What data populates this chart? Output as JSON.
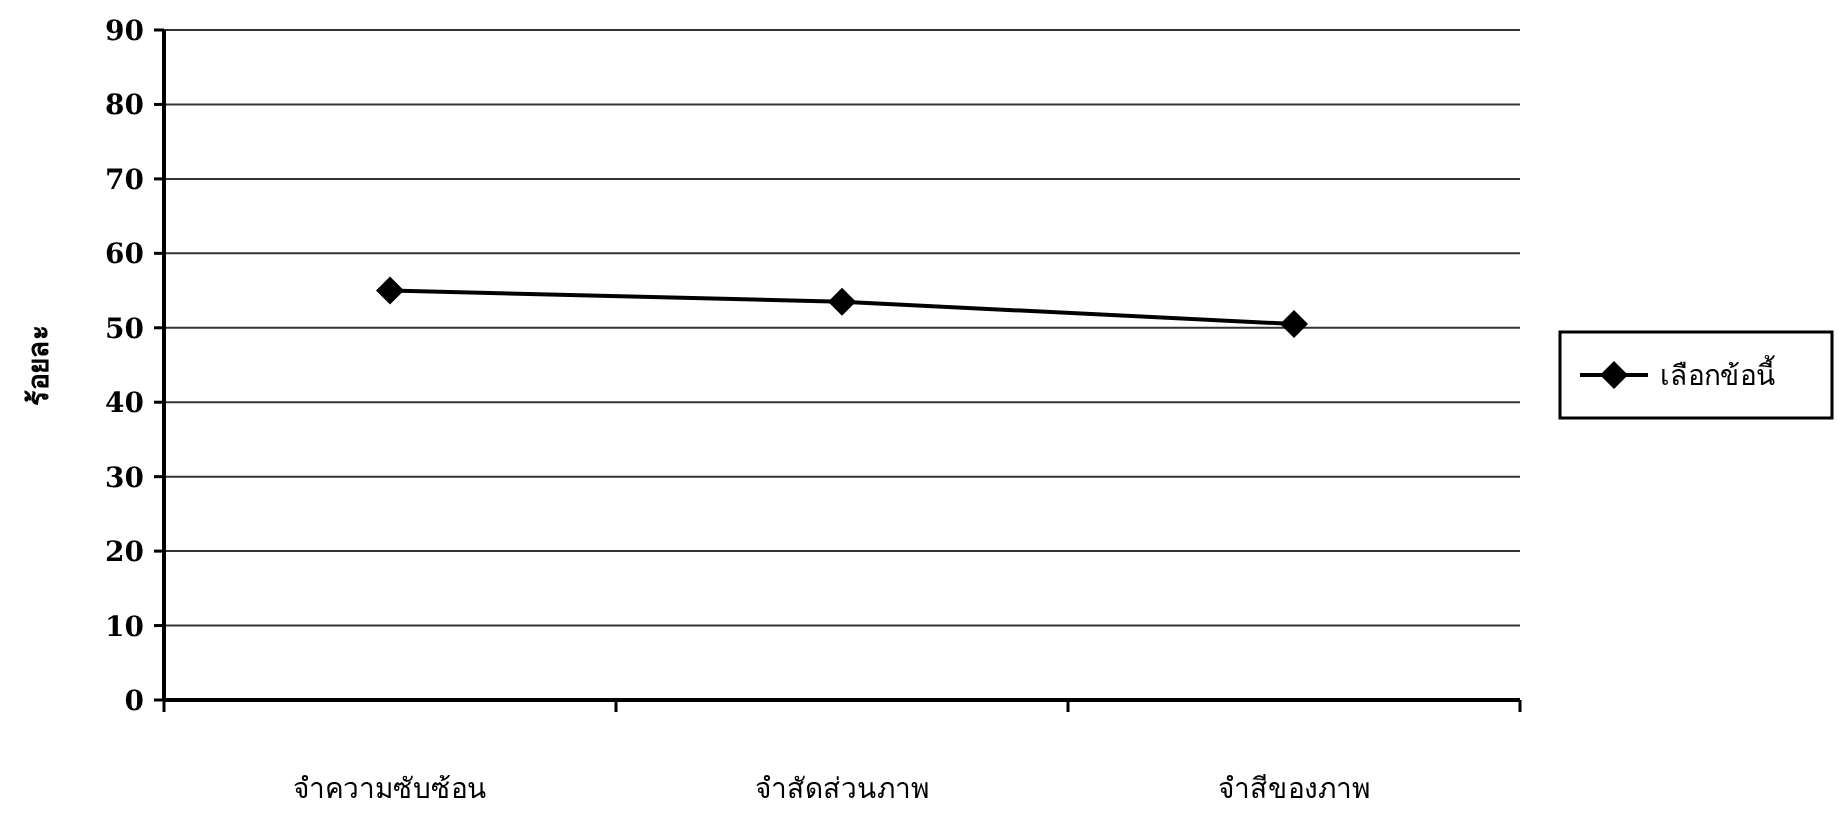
{
  "chart_data": {
    "type": "line",
    "categories": [
      "จำความซับซ้อน",
      "จำสัดส่วนภาพ",
      "จำสีของภาพ"
    ],
    "ylabel": "ร้อยละ",
    "series": [
      {
        "name": "เลือกข้อนี้",
        "color": "#000000",
        "values": [
          55,
          53.5,
          50.5
        ]
      }
    ],
    "ylim": [
      0,
      90
    ],
    "yticks": [
      0,
      10,
      20,
      30,
      40,
      50,
      60,
      70,
      80,
      90
    ],
    "grid": "y",
    "legend": "right",
    "marker": "diamond"
  }
}
